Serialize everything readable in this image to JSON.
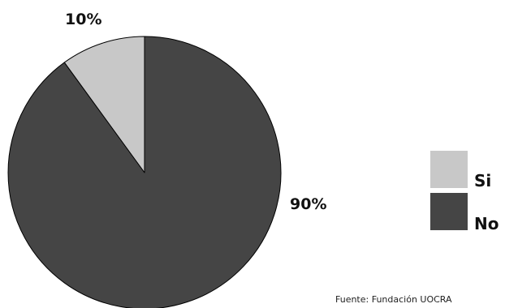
{
  "chart_data": {
    "type": "pie",
    "categories": [
      "Si",
      "No"
    ],
    "values": [
      10,
      90
    ],
    "data_labels": [
      "10%",
      "90%"
    ],
    "colors": [
      "#c8c8c8",
      "#454545"
    ],
    "start_angle_deg": 0,
    "direction": "counterclockwise",
    "legend": {
      "placement": "right",
      "entries": [
        "Si",
        "No"
      ]
    },
    "source": "Fuente: Fundación UOCRA"
  }
}
